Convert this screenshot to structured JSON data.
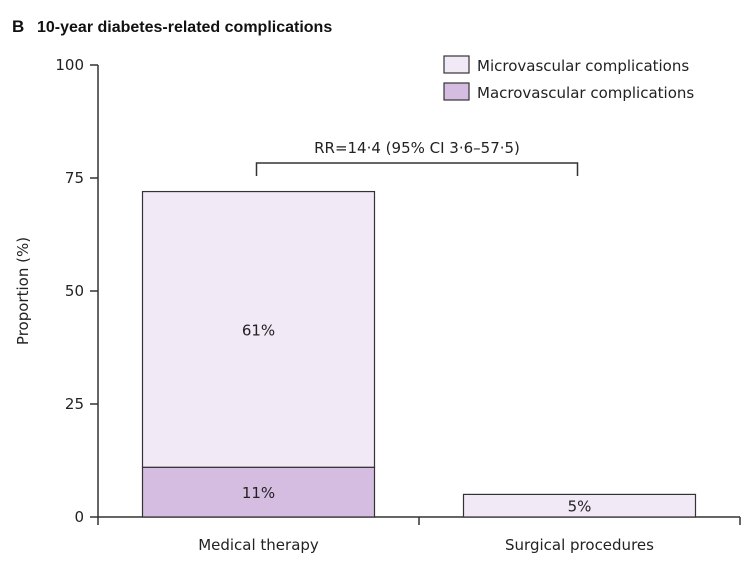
{
  "panel_letter": "B",
  "colors": {
    "microvascular": "#f1e9f6",
    "macrovascular": "#d5bde2",
    "stroke": "#333333"
  },
  "chart_data": {
    "type": "bar",
    "stacked": true,
    "title": "10-year diabetes-related complications",
    "xlabel": "",
    "ylabel": "Proportion (%)",
    "ylim": [
      0,
      100
    ],
    "yticks": [
      0,
      25,
      50,
      75,
      100
    ],
    "categories": [
      "Medical therapy",
      "Surgical procedures"
    ],
    "series": [
      {
        "name": "Macrovascular complications",
        "values": [
          11,
          0
        ],
        "labels": [
          "11%",
          ""
        ]
      },
      {
        "name": "Microvascular complications",
        "values": [
          61,
          5
        ],
        "labels": [
          "61%",
          "5%"
        ]
      }
    ],
    "legend_order": [
      "Microvascular complications",
      "Macrovascular complications"
    ],
    "legend_position": "top-right",
    "grid": false,
    "annotation": {
      "text": "RR=14·4 (95% CI 3·6–57·5)",
      "from_category": "Medical therapy",
      "to_category": "Surgical procedures"
    }
  }
}
